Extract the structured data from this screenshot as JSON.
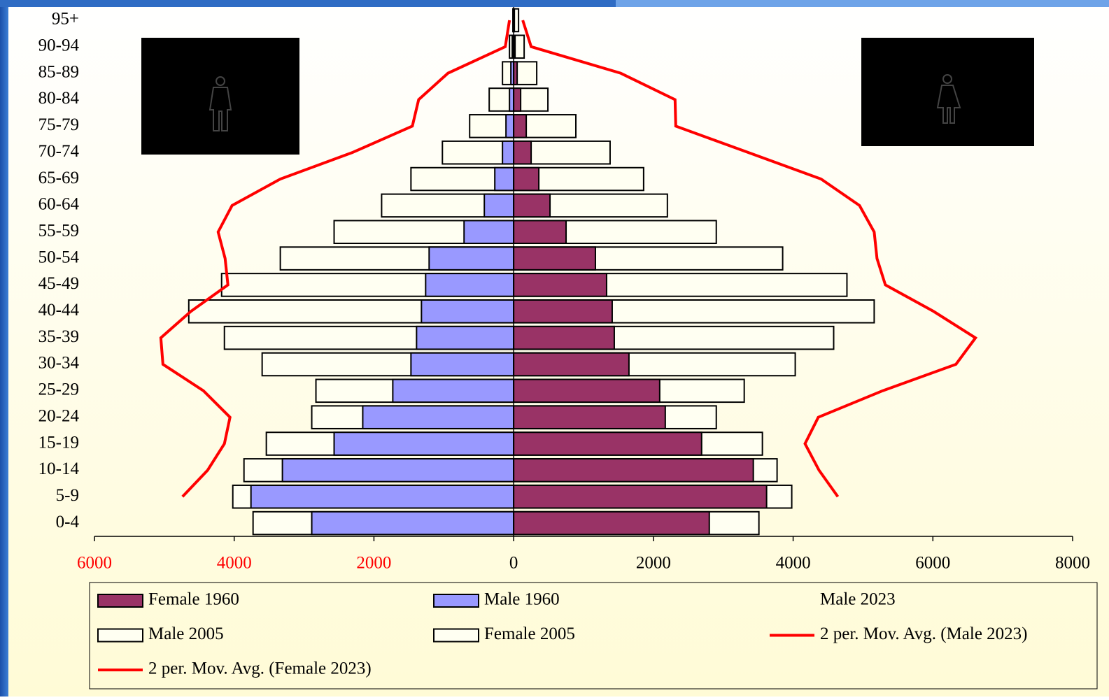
{
  "chart_data": {
    "type": "bar",
    "orientation": "horizontal",
    "categories": [
      "0-4",
      "5-9",
      "10-14",
      "15-19",
      "20-24",
      "25-29",
      "30-34",
      "35-39",
      "40-44",
      "45-49",
      "50-54",
      "55-59",
      "60-64",
      "65-69",
      "70-74",
      "75-79",
      "80-84",
      "85-89",
      "90-94",
      "95+"
    ],
    "series": [
      {
        "name": "Female 1960",
        "color": "#993366",
        "kind": "bar",
        "values": [
          2800,
          3620,
          3430,
          2690,
          2170,
          2090,
          1650,
          1440,
          1410,
          1330,
          1170,
          750,
          520,
          360,
          250,
          180,
          100,
          50,
          20,
          10
        ]
      },
      {
        "name": "Male 1960",
        "color": "#9999ff",
        "kind": "bar",
        "values": [
          -2890,
          -3760,
          -3310,
          -2570,
          -2160,
          -1730,
          -1470,
          -1390,
          -1320,
          -1260,
          -1210,
          -710,
          -420,
          -270,
          -160,
          -110,
          -60,
          -40,
          -20,
          -10
        ]
      },
      {
        "name": "Male 2023"
      },
      {
        "name": "Male 2005",
        "color": "#fffff2",
        "kind": "bar",
        "values": [
          -3730,
          -4020,
          -3860,
          -3540,
          -2890,
          -2830,
          -3600,
          -4140,
          -4650,
          -4180,
          -3340,
          -2570,
          -1890,
          -1470,
          -1020,
          -630,
          -350,
          -160,
          -60,
          -10
        ]
      },
      {
        "name": "Female 2005",
        "color": "#fffff2",
        "kind": "bar",
        "values": [
          3510,
          3980,
          3770,
          3560,
          2900,
          3300,
          4030,
          4580,
          5160,
          4770,
          3850,
          2900,
          2200,
          1860,
          1380,
          890,
          490,
          330,
          150,
          70
        ]
      },
      {
        "name": "2 per. Mov. Avg. (Male 2023)",
        "color": "#ff0000",
        "kind": "line",
        "values": [
          null,
          -4740,
          -4380,
          -4140,
          -4060,
          -4440,
          -5020,
          -5050,
          -4620,
          -4090,
          -4130,
          -4230,
          -4030,
          -3340,
          -2310,
          -1450,
          -1360,
          -940,
          -120,
          -60
        ]
      },
      {
        "name": "2 per. Mov. Avg. (Female 2023)",
        "color": "#ff0000",
        "kind": "line",
        "values": [
          null,
          4640,
          4370,
          4170,
          4360,
          5280,
          6330,
          6610,
          6010,
          5320,
          5200,
          5160,
          4950,
          4400,
          3360,
          2320,
          2310,
          1530,
          250,
          130
        ]
      }
    ],
    "xlim": [
      -6000,
      8000
    ],
    "xticks": [
      {
        "value": -6000,
        "label": "6000"
      },
      {
        "value": -4000,
        "label": "4000"
      },
      {
        "value": -2000,
        "label": "2000"
      },
      0,
      2000,
      4000,
      6000,
      8000
    ],
    "negative_tick_label_color": "#ff0000"
  }
}
